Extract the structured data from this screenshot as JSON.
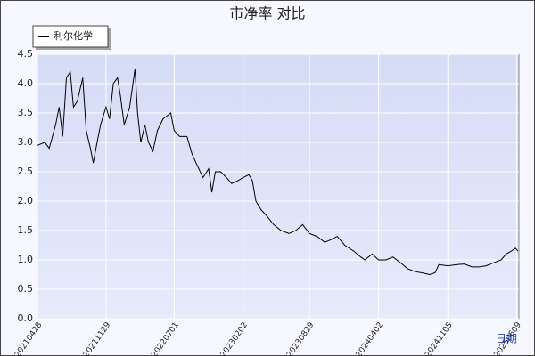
{
  "chart_data": {
    "type": "line",
    "title": "市净率 对比",
    "x_label": "日期",
    "x": [
      "20210428",
      "20210521",
      "20210604",
      "20210624",
      "20210705",
      "20210716",
      "20210728",
      "20210809",
      "20210819",
      "20210831",
      "20210917",
      "20210928",
      "20211011",
      "20211020",
      "20211101",
      "20211112",
      "20211129",
      "20211210",
      "20211222",
      "20220104",
      "20220113",
      "20220125",
      "20220211",
      "20220228",
      "20220308",
      "20220318",
      "20220331",
      "20220411",
      "20220425",
      "20220509",
      "20220527",
      "20220620",
      "20220701",
      "20220718",
      "20220810",
      "20220826",
      "20220912",
      "20220929",
      "20221017",
      "20221027",
      "20221107",
      "20221124",
      "20221212",
      "20221228",
      "20230117",
      "20230202",
      "20230220",
      "20230303",
      "20230314",
      "20230331",
      "20230417",
      "20230509",
      "20230601",
      "20230626",
      "20230717",
      "20230808",
      "20230829",
      "20230922",
      "20231016",
      "20231107",
      "20231124",
      "20231218",
      "20240115",
      "20240206",
      "20240219",
      "20240313",
      "20240402",
      "20240425",
      "20240517",
      "20240610",
      "20240702",
      "20240725",
      "20240816",
      "20240909",
      "20240926",
      "20241008",
      "20241105",
      "20241204",
      "20241227",
      "20250120",
      "20250211",
      "20250305",
      "20250328",
      "20250421",
      "20250507",
      "20250523",
      "20250605",
      "20250613"
    ],
    "series": [
      {
        "name": "利尔化学",
        "color": "#000000",
        "values": [
          2.95,
          3.0,
          2.9,
          3.3,
          3.6,
          3.1,
          4.1,
          4.2,
          3.6,
          3.7,
          4.1,
          3.2,
          2.9,
          2.65,
          3.0,
          3.3,
          3.6,
          3.4,
          4.0,
          4.1,
          3.8,
          3.3,
          3.6,
          4.25,
          3.5,
          3.0,
          3.3,
          3.0,
          2.85,
          3.2,
          3.4,
          3.5,
          3.2,
          3.1,
          3.1,
          2.8,
          2.6,
          2.4,
          2.55,
          2.15,
          2.5,
          2.5,
          2.4,
          2.3,
          2.35,
          2.4,
          2.45,
          2.35,
          2.0,
          1.85,
          1.75,
          1.6,
          1.5,
          1.45,
          1.5,
          1.6,
          1.45,
          1.4,
          1.3,
          1.35,
          1.4,
          1.25,
          1.15,
          1.05,
          1.0,
          1.1,
          1.0,
          1.0,
          1.05,
          0.95,
          0.85,
          0.8,
          0.78,
          0.75,
          0.78,
          0.92,
          0.9,
          0.92,
          0.93,
          0.88,
          0.88,
          0.9,
          0.95,
          1.0,
          1.1,
          1.15,
          1.2,
          1.15
        ]
      }
    ],
    "xlim": [
      "20210428",
      "20250616"
    ],
    "xticks": [
      "20210428",
      "20211129",
      "20220701",
      "20230202",
      "20230829",
      "20240402",
      "20241105",
      "20250609"
    ],
    "ylim": [
      0,
      4.5
    ],
    "yticks": [
      {
        "value": 0,
        "label": "0.0"
      },
      {
        "value": 0.5,
        "label": "0.5"
      },
      {
        "value": 1,
        "label": "1.0"
      },
      {
        "value": 1.5,
        "label": "1.5"
      },
      {
        "value": 2,
        "label": "2.0"
      },
      {
        "value": 2.5,
        "label": "2.5"
      },
      {
        "value": 3,
        "label": "3.0"
      },
      {
        "value": 3.5,
        "label": "3.5"
      },
      {
        "value": 4,
        "label": "4.0"
      },
      {
        "value": 4.5,
        "label": "4.5"
      }
    ],
    "grid": true
  }
}
